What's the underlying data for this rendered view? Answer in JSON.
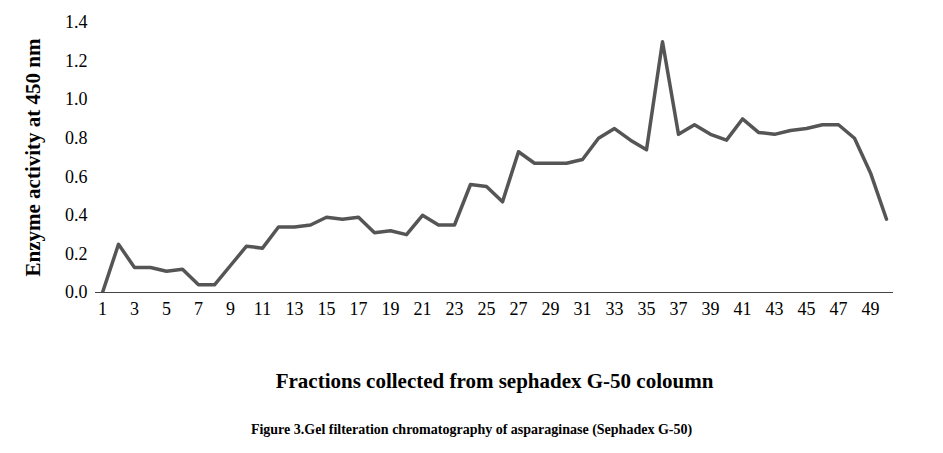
{
  "chart_data": {
    "type": "line",
    "title": "Figure 3.Gel filteration chromatography of asparaginase (Sephadex G-50)",
    "x_label": "Fractions collected from sephadex G-50 coloumn",
    "y_label": "Enzyme activity at 450 nm",
    "categories": [
      "1",
      null,
      "3",
      null,
      "5",
      null,
      "7",
      null,
      "9",
      null,
      "11",
      null,
      "13",
      null,
      "15",
      null,
      "17",
      null,
      "19",
      null,
      "21",
      null,
      "23",
      null,
      "25",
      null,
      "27",
      null,
      "29",
      null,
      "31",
      null,
      "33",
      null,
      "35",
      null,
      "37",
      null,
      "39",
      null,
      "41",
      null,
      "43",
      null,
      "45",
      null,
      "47",
      null,
      "49",
      null
    ],
    "values": [
      0.0,
      0.25,
      0.13,
      0.13,
      0.11,
      0.12,
      0.04,
      0.04,
      0.14,
      0.24,
      0.23,
      0.34,
      0.34,
      0.35,
      0.39,
      0.38,
      0.39,
      0.31,
      0.32,
      0.3,
      0.4,
      0.35,
      0.35,
      0.56,
      0.55,
      0.47,
      0.73,
      0.67,
      0.67,
      0.67,
      0.69,
      0.8,
      0.85,
      0.79,
      0.74,
      1.3,
      0.82,
      0.87,
      0.82,
      0.79,
      0.9,
      0.83,
      0.82,
      0.84,
      0.85,
      0.87,
      0.87,
      0.8,
      0.62,
      0.38
    ],
    "color": "#555555",
    "ylim": [
      0,
      1.4
    ],
    "yticks": [
      0,
      0.2,
      0.4,
      0.6,
      0.8,
      1,
      1.2,
      1.4
    ],
    "grid": false
  }
}
